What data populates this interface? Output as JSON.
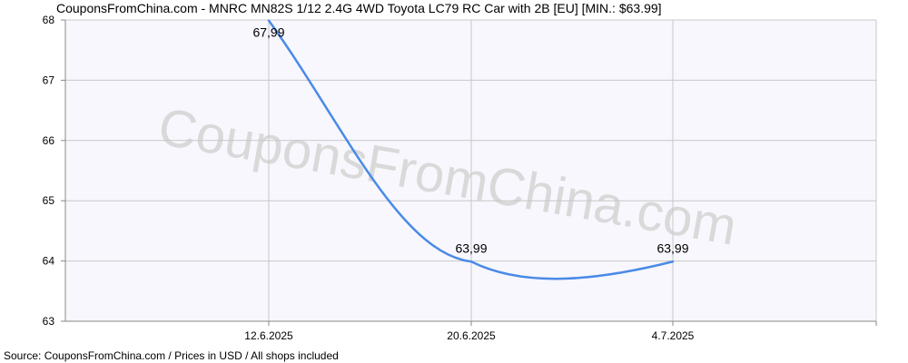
{
  "title": "CouponsFromChina.com - MNRC MN82S 1/12 2.4G 4WD Toyota LC79 RC Car with 2B [EU] [MIN.: $63.99]",
  "footer": "Source: CouponsFromChina.com / Prices in USD / All shops included",
  "watermark": "CouponsFromChina.com",
  "colors": {
    "line": "#4a8ae6",
    "grid": "#c8c8c8",
    "plot_bg": "#f7f7fd"
  },
  "chart_data": {
    "type": "line",
    "title": "CouponsFromChina.com - MNRC MN82S 1/12 2.4G 4WD Toyota LC79 RC Car with 2B [EU] [MIN.: $63.99]",
    "xlabel": "",
    "ylabel": "",
    "ylim": [
      63,
      68
    ],
    "yticks": [
      63,
      64,
      65,
      66,
      67,
      68
    ],
    "x": [
      "12.6.2025",
      "20.6.2025",
      "4.7.2025"
    ],
    "values": [
      67.99,
      63.99,
      63.99
    ],
    "data_labels": [
      "67,99",
      "63,99",
      "63,99"
    ],
    "grid": true,
    "smooth": true
  }
}
